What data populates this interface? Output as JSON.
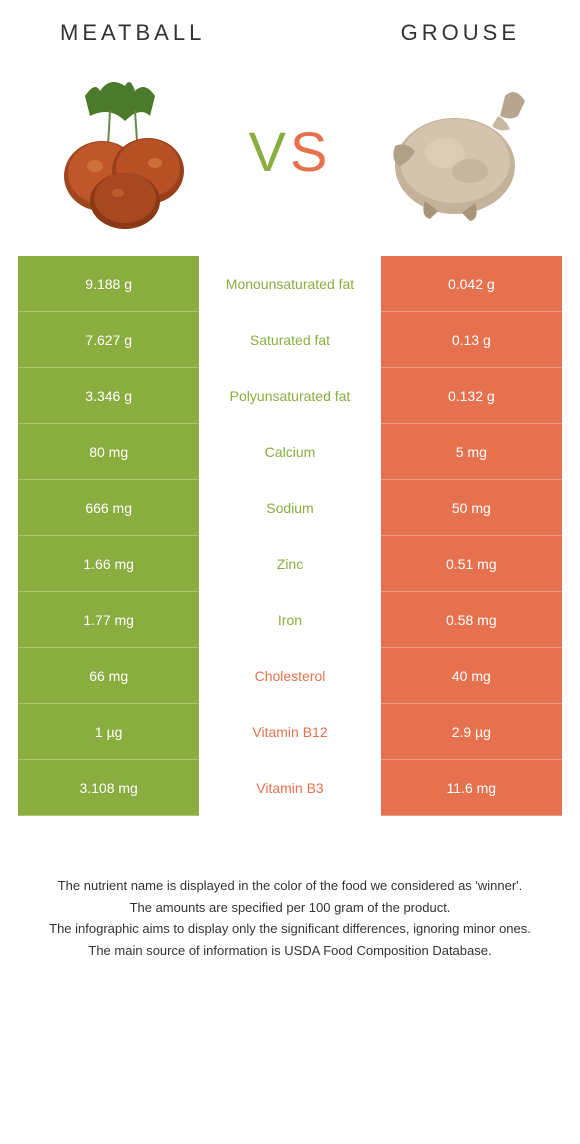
{
  "header": {
    "left_title": "Meatball",
    "right_title": "Grouse"
  },
  "vs": {
    "v": "V",
    "s": "S"
  },
  "colors": {
    "left_bg": "#8aad3f",
    "right_bg": "#e5714f",
    "mid_bg": "#ffffff"
  },
  "rows": [
    {
      "left": "9.188 g",
      "mid": "Monounsaturated fat",
      "right": "0.042 g",
      "winner": "left"
    },
    {
      "left": "7.627 g",
      "mid": "Saturated fat",
      "right": "0.13 g",
      "winner": "left"
    },
    {
      "left": "3.346 g",
      "mid": "Polyunsaturated fat",
      "right": "0.132 g",
      "winner": "left"
    },
    {
      "left": "80 mg",
      "mid": "Calcium",
      "right": "5 mg",
      "winner": "left"
    },
    {
      "left": "666 mg",
      "mid": "Sodium",
      "right": "50 mg",
      "winner": "left"
    },
    {
      "left": "1.66 mg",
      "mid": "Zinc",
      "right": "0.51 mg",
      "winner": "left"
    },
    {
      "left": "1.77 mg",
      "mid": "Iron",
      "right": "0.58 mg",
      "winner": "left"
    },
    {
      "left": "66 mg",
      "mid": "Cholesterol",
      "right": "40 mg",
      "winner": "right"
    },
    {
      "left": "1 µg",
      "mid": "Vitamin B12",
      "right": "2.9 µg",
      "winner": "right"
    },
    {
      "left": "3.108 mg",
      "mid": "Vitamin B3",
      "right": "11.6 mg",
      "winner": "right"
    }
  ],
  "footer": {
    "line1": "The nutrient name is displayed in the color of the food we considered as 'winner'.",
    "line2": "The amounts are specified per 100 gram of the product.",
    "line3": "The infographic aims to display only the significant differences, ignoring minor ones.",
    "line4": "The main source of information is USDA Food Composition Database."
  }
}
